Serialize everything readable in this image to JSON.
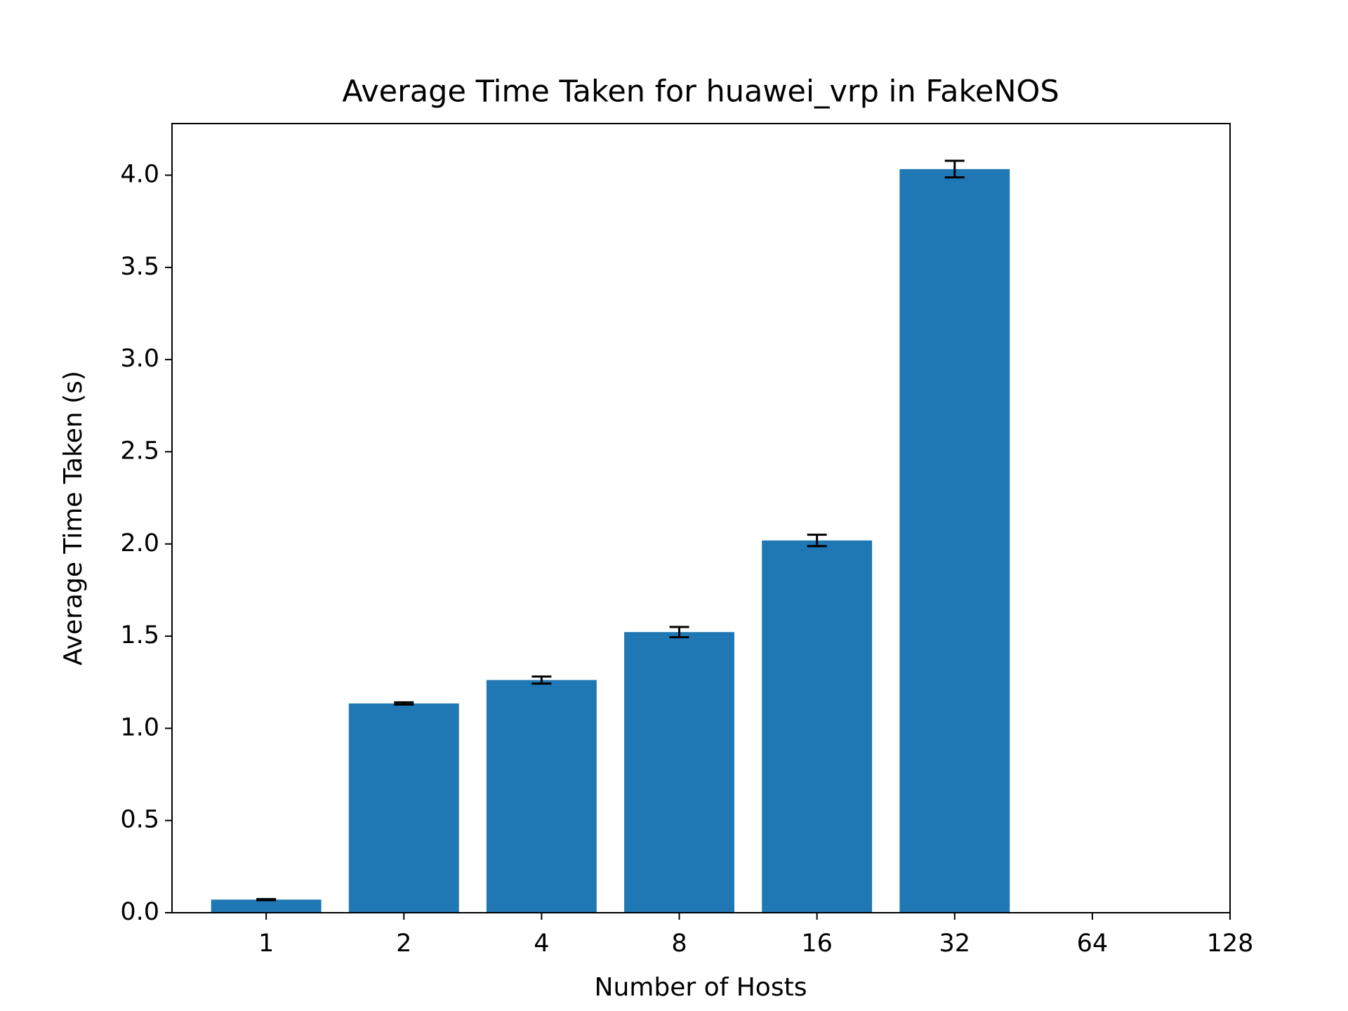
{
  "chart_data": {
    "type": "bar",
    "title": "Average Time Taken for huawei_vrp in FakeNOS",
    "xlabel": "Number of Hosts",
    "ylabel": "Average Time Taken (s)",
    "categories": [
      "1",
      "2",
      "4",
      "8",
      "16",
      "32",
      "64",
      "128"
    ],
    "values": [
      0.071,
      1.135,
      1.262,
      1.522,
      2.019,
      4.033,
      null,
      null
    ],
    "errors": [
      0.003,
      0.006,
      0.019,
      0.028,
      0.031,
      0.045,
      null,
      null
    ],
    "color": "#1f77b4",
    "error_color": "#000000",
    "ylim": [
      0,
      4.28
    ],
    "yticks": [
      {
        "value": 0,
        "label": "0.0"
      },
      {
        "value": 0.5,
        "label": "0.5"
      },
      {
        "value": 1,
        "label": "1.0"
      },
      {
        "value": 1.5,
        "label": "1.5"
      },
      {
        "value": 2,
        "label": "2.0"
      },
      {
        "value": 2.5,
        "label": "2.5"
      },
      {
        "value": 3,
        "label": "3.0"
      },
      {
        "value": 3.5,
        "label": "3.5"
      },
      {
        "value": 4,
        "label": "4.0"
      }
    ],
    "grid": false
  }
}
